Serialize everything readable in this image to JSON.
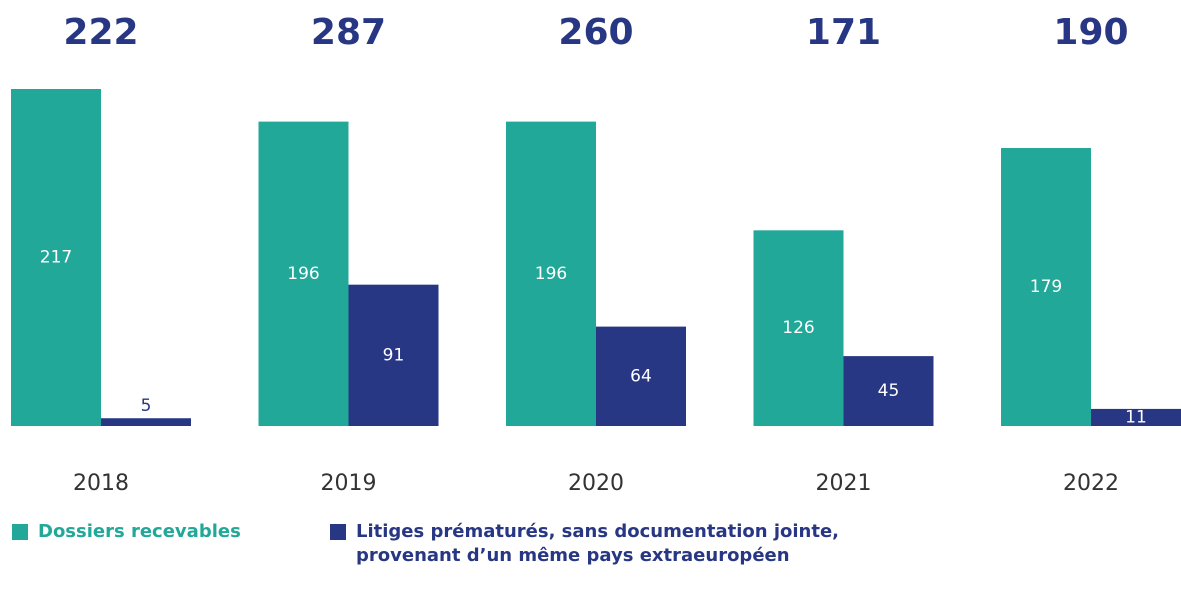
{
  "chart_data": {
    "type": "bar",
    "categories": [
      "2018",
      "2019",
      "2020",
      "2021",
      "2022"
    ],
    "totals": [
      222,
      287,
      260,
      171,
      190
    ],
    "series": [
      {
        "name": "Dossiers recevables",
        "color": "#21a899",
        "values": [
          217,
          196,
          196,
          126,
          179
        ]
      },
      {
        "name": "Litiges prématurés, sans documentation jointe, provenant d’un même pays extraeuropéen",
        "color": "#283783",
        "values": [
          5,
          91,
          64,
          45,
          11
        ]
      }
    ]
  }
}
